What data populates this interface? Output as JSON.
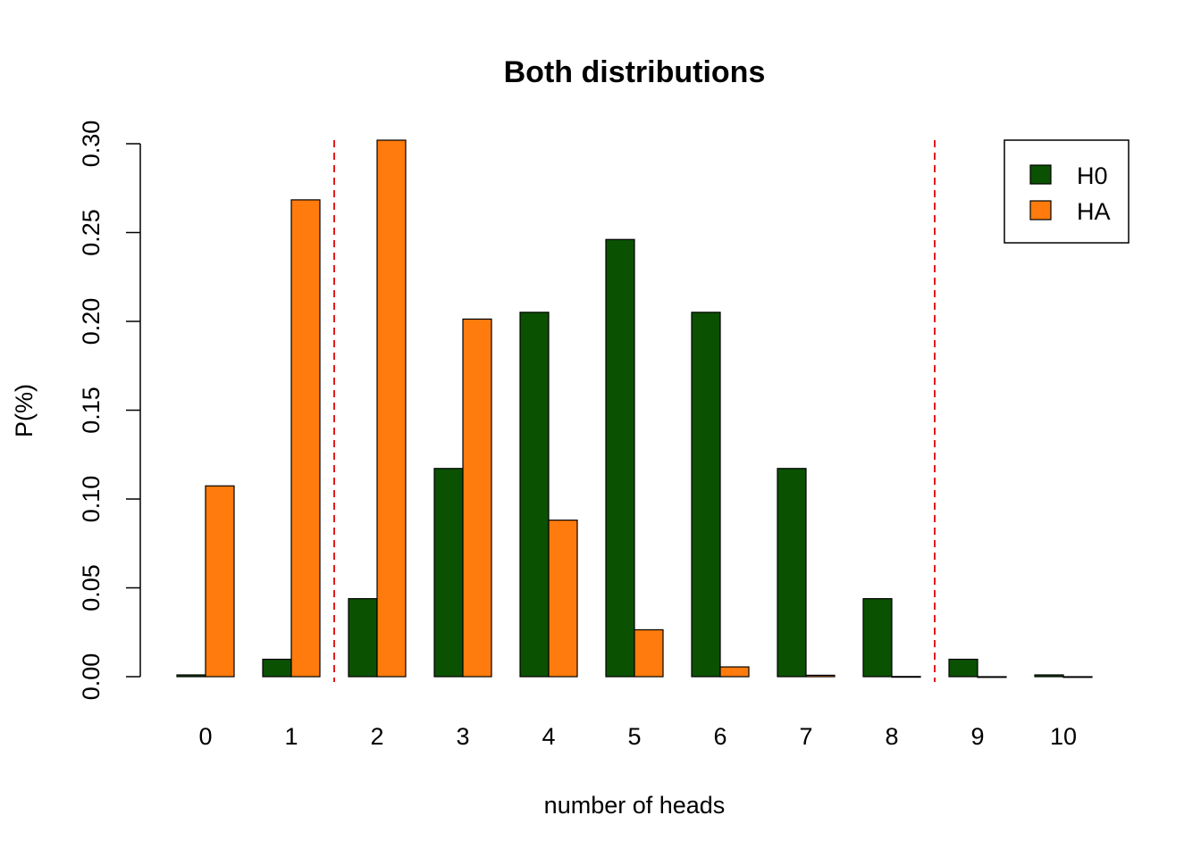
{
  "chart_data": {
    "type": "bar",
    "title": "Both distributions",
    "xlabel": "number of heads",
    "ylabel": "P(%)",
    "categories": [
      "0",
      "1",
      "2",
      "3",
      "4",
      "5",
      "6",
      "7",
      "8",
      "9",
      "10"
    ],
    "series": [
      {
        "name": "H0",
        "color": "#0b5102",
        "values": [
          0.001,
          0.0098,
          0.0439,
          0.1172,
          0.2051,
          0.2461,
          0.2051,
          0.1172,
          0.0439,
          0.0098,
          0.001
        ]
      },
      {
        "name": "HA",
        "color": "#ff7b0d",
        "values": [
          0.1074,
          0.2684,
          0.302,
          0.2013,
          0.0881,
          0.0264,
          0.0055,
          0.0008,
          0.0001,
          0.0,
          0.0
        ]
      }
    ],
    "ylim": [
      0,
      0.3
    ],
    "yticks": [
      "0.00",
      "0.05",
      "0.10",
      "0.15",
      "0.20",
      "0.25",
      "0.30"
    ],
    "grid": false,
    "legend_position": "top-right",
    "reference_lines": [
      {
        "between": [
          "1",
          "2"
        ],
        "color": "#e41a1c",
        "style": "dashed"
      },
      {
        "between": [
          "8",
          "9"
        ],
        "color": "#e41a1c",
        "style": "dashed"
      }
    ]
  }
}
